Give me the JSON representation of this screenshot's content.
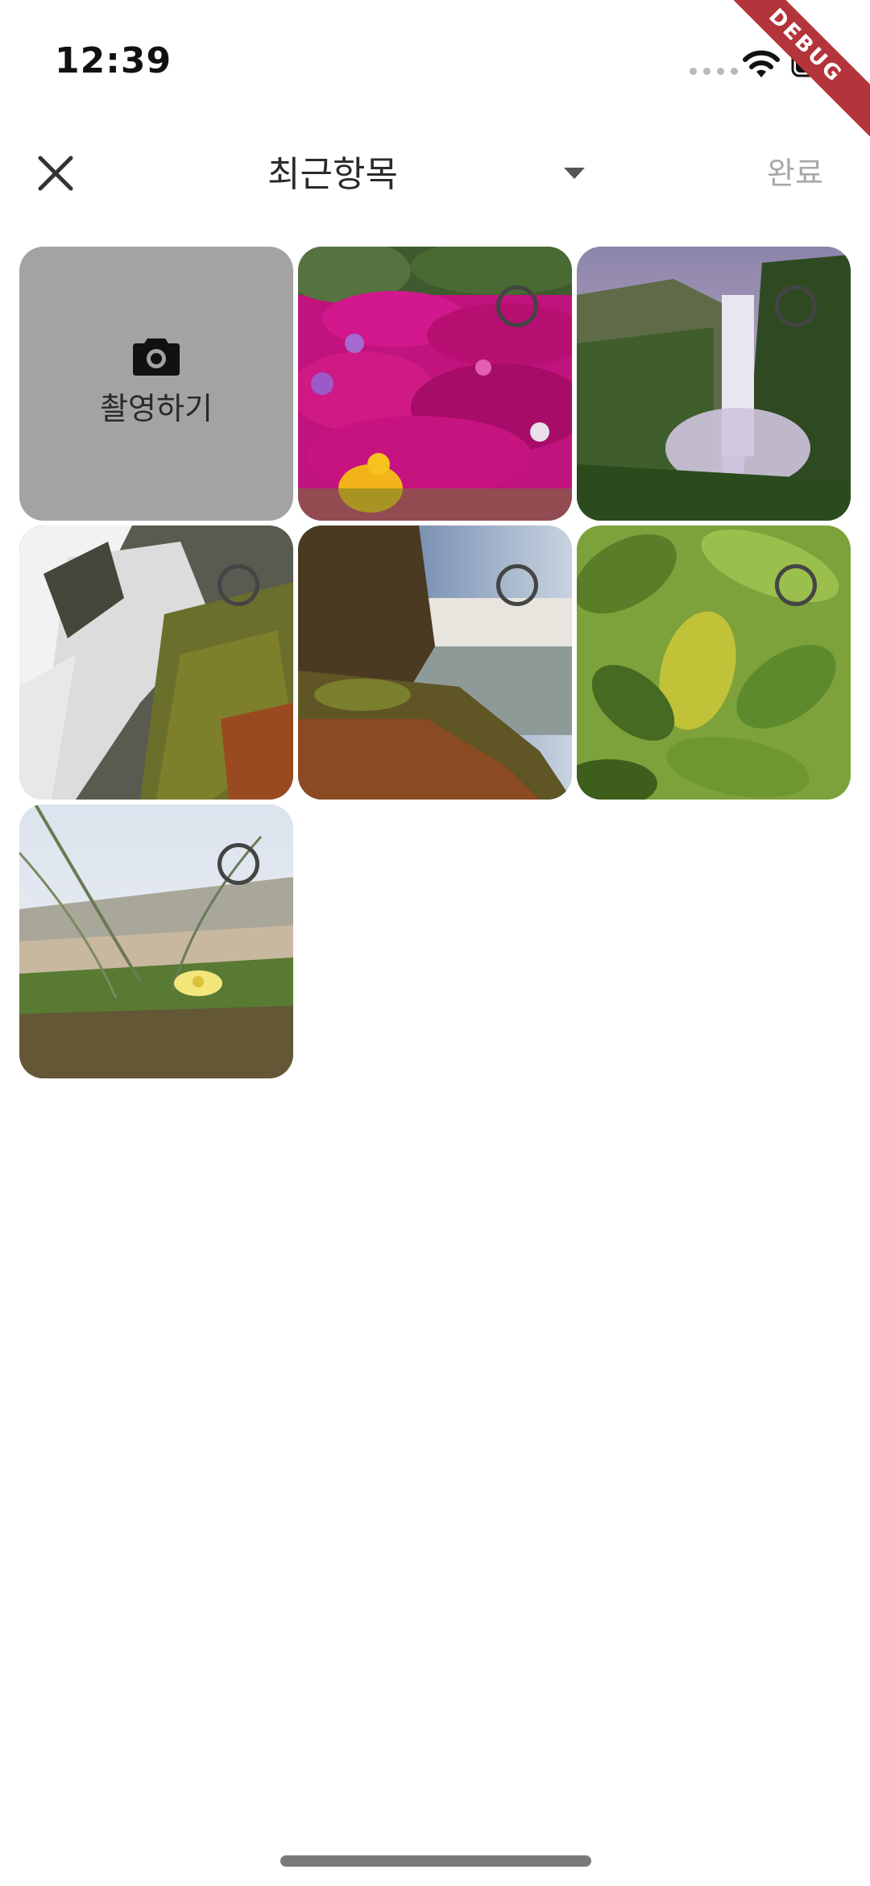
{
  "status_bar": {
    "time": "12:39",
    "icons": [
      "cellular-dots-icon",
      "wifi-icon",
      "battery-icon"
    ]
  },
  "debug_banner": {
    "label": "DEBUG",
    "color": "#b3343a"
  },
  "header": {
    "close_icon": "close-icon",
    "album_title": "최근항목",
    "dropdown_icon": "caret-down-icon",
    "done_label": "완료"
  },
  "grid": {
    "camera_tile": {
      "label": "촬영하기",
      "icon": "camera-icon",
      "background": "#a3a3a3"
    },
    "photos": [
      {
        "subject": "magenta flowers",
        "selected": false
      },
      {
        "subject": "waterfall in green valley",
        "selected": false
      },
      {
        "subject": "waterfall over mossy rocks",
        "selected": false
      },
      {
        "subject": "waterfall with rocky shore",
        "selected": false
      },
      {
        "subject": "green leaves",
        "selected": false
      },
      {
        "subject": "yellow flower in grass",
        "selected": false
      }
    ]
  },
  "colors": {
    "accent_done_disabled": "#a8a8a8",
    "selection_ring": "#444444"
  }
}
